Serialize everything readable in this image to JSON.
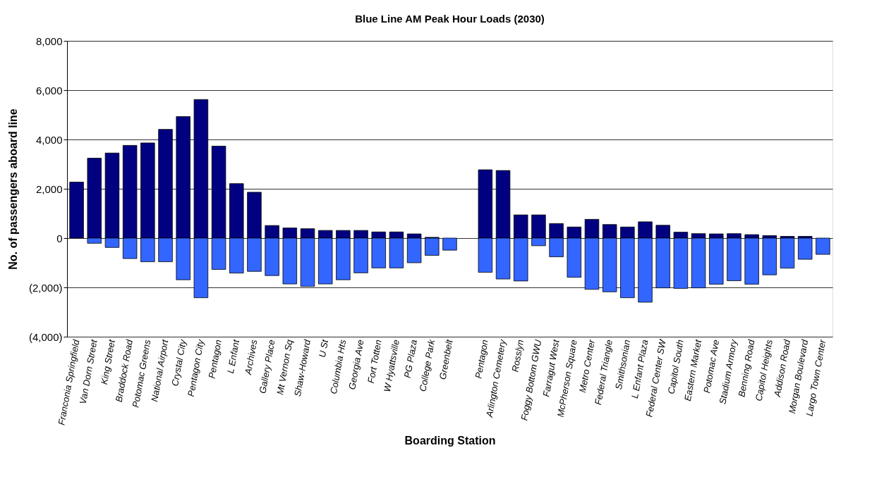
{
  "chart_data": {
    "type": "bar",
    "title": "Blue Line AM Peak Hour Loads (2030)",
    "xlabel": "Boarding Station",
    "ylabel": "No. of passengers aboard  line",
    "stacked": true,
    "categories": [
      "Franconia  Springfield",
      "Van Dorn Street",
      "King Street",
      "Braddock Road",
      "Potomac Greens",
      "National Airport",
      "Crystal City",
      "Pentagon City",
      "Pentagon",
      "L Enfant",
      "Archives",
      "Gallery Place",
      "Mt Vernon Sq",
      "Shaw-Howard",
      "U St",
      "Columbia Hts",
      "Georgia Ave",
      "Fort Totten",
      "W Hyattsville",
      "PG Plaza",
      "College Park",
      "Greenbelt",
      null,
      "Pentagon",
      "Arlington  Cemetery",
      "Rosslyn",
      "Foggy Bottom  GWU",
      "Farragut West",
      "McPherson  Square",
      "Metro Center",
      "Federal Triangle",
      "Smithsonian",
      "L  Enfant Plaza",
      "Federal Center SW",
      "Capitol South",
      "Eastern Market",
      "Potomac Ave",
      "Stadium  Armory",
      "Benning Road",
      "Capitol Heights",
      "Addison  Road",
      "Morgan Boulevard",
      "Largo Town Center"
    ],
    "series": [
      {
        "color": "#000080",
        "values": [
          2270,
          3240,
          3450,
          3760,
          3860,
          4410,
          4930,
          5620,
          3730,
          2210,
          1860,
          510,
          410,
          380,
          310,
          310,
          310,
          250,
          250,
          170,
          30,
          null,
          null,
          2770,
          2740,
          940,
          940,
          590,
          450,
          760,
          550,
          450,
          660,
          520,
          240,
          180,
          170,
          180,
          140,
          100,
          70,
          70,
          null
        ]
      },
      {
        "color": "#3366ff",
        "values": [
          null,
          -210,
          -380,
          -830,
          -960,
          -960,
          -1690,
          -2420,
          -1270,
          -1420,
          -1350,
          -1520,
          -1860,
          -1960,
          -1860,
          -1690,
          -1410,
          -1210,
          -1210,
          -1000,
          -700,
          -490,
          null,
          -1390,
          -1660,
          -1740,
          -310,
          -760,
          -1590,
          -2080,
          -2180,
          -2420,
          -2600,
          -2020,
          -2040,
          -2020,
          -1870,
          -1730,
          -1870,
          -1490,
          -1220,
          -860,
          -660
        ]
      }
    ],
    "ylim": [
      -4000,
      8000
    ],
    "yticks": [
      {
        "value": -4000,
        "label": "(4,000)"
      },
      {
        "value": -2000,
        "label": "(2,000)"
      },
      0,
      {
        "value": 2000,
        "label": "2,000"
      },
      {
        "value": 4000,
        "label": "4,000"
      },
      {
        "value": 6000,
        "label": "6,000"
      },
      {
        "value": 8000,
        "label": "8,000"
      }
    ],
    "grid": "y",
    "legend": false
  }
}
